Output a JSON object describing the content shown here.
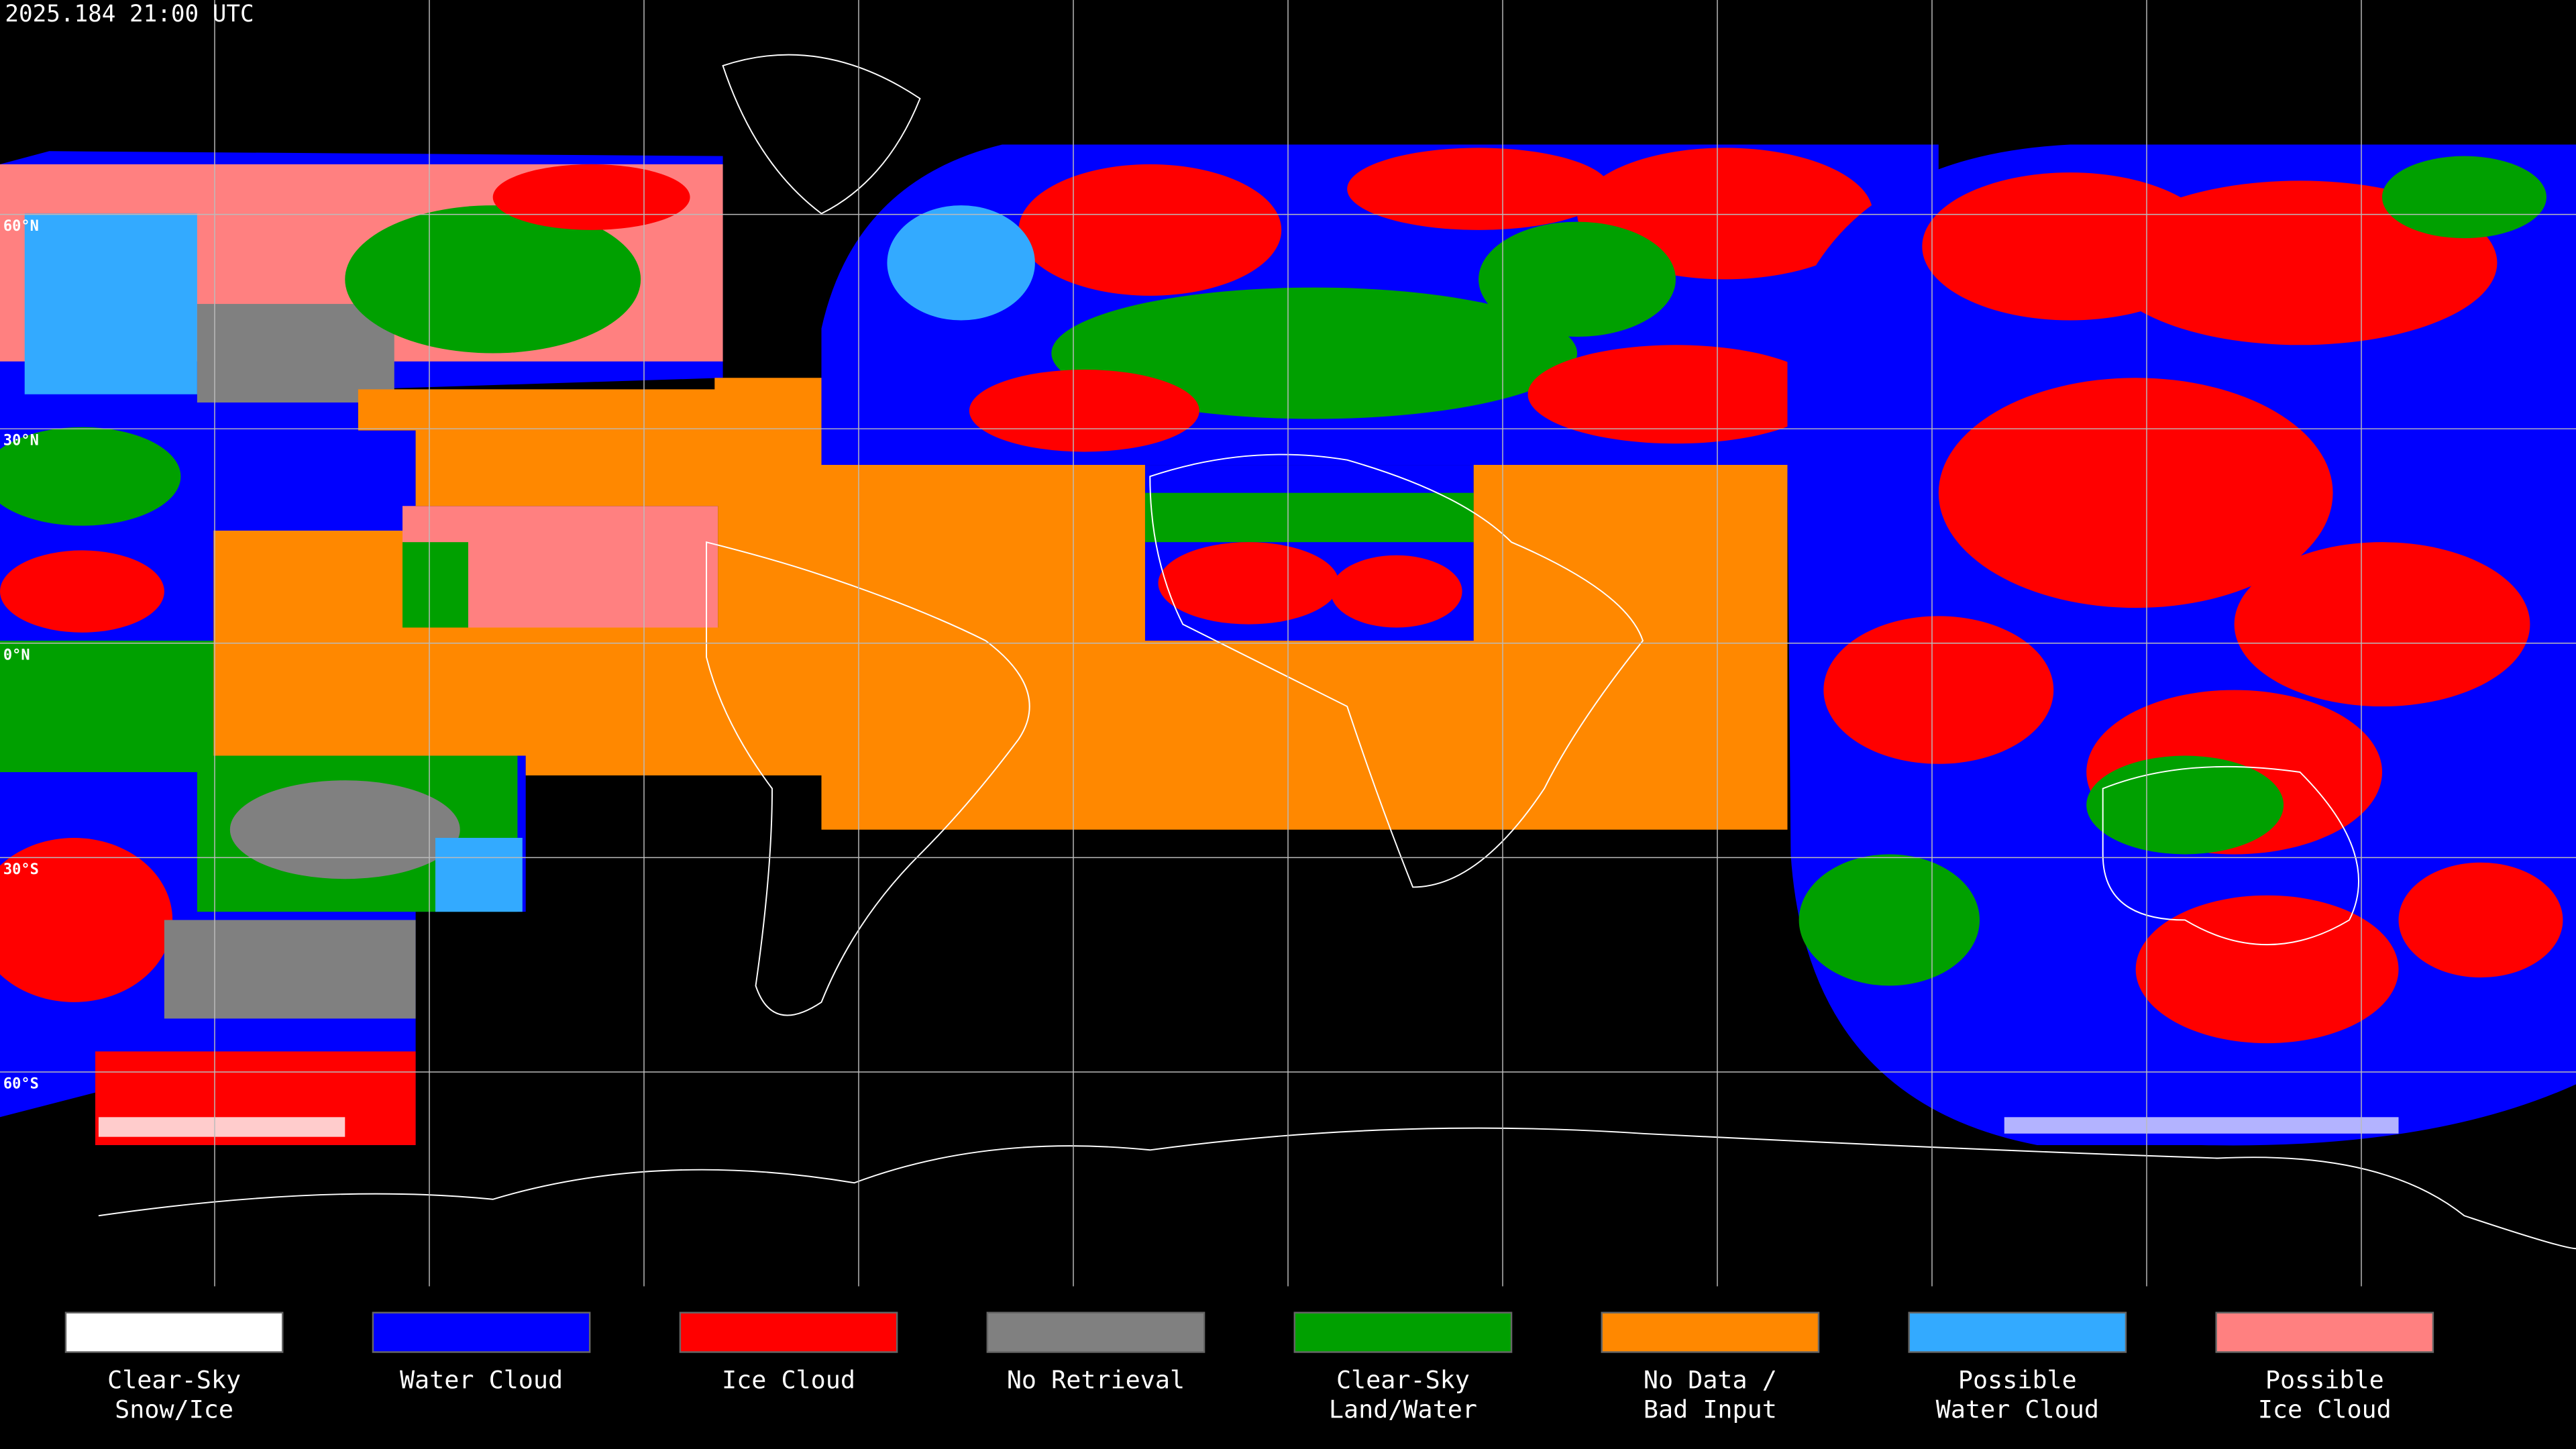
{
  "header": {
    "timestamp": "2025.184 21:00 UTC"
  },
  "map": {
    "lat_labels": [
      "60°N",
      "30°N",
      "0°N",
      "30°S",
      "60°S"
    ]
  },
  "legend": [
    {
      "color": "#ffffff",
      "label": [
        "Clear-Sky",
        "Snow/Ice"
      ]
    },
    {
      "color": "#0000ff",
      "label": [
        "Water Cloud"
      ]
    },
    {
      "color": "#ff0000",
      "label": [
        "Ice Cloud"
      ]
    },
    {
      "color": "#808080",
      "label": [
        "No Retrieval"
      ]
    },
    {
      "color": "#00a000",
      "label": [
        "Clear-Sky",
        "Land/Water"
      ]
    },
    {
      "color": "#ff8800",
      "label": [
        "No Data /",
        "Bad Input"
      ]
    },
    {
      "color": "#33aaff",
      "label": [
        "Possible",
        "Water Cloud"
      ]
    },
    {
      "color": "#ff8080",
      "label": [
        "Possible",
        "Ice Cloud"
      ]
    }
  ]
}
